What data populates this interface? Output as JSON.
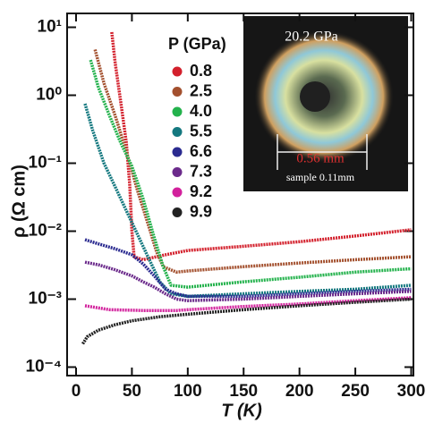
{
  "chart_data": {
    "type": "line",
    "x_label": "T (K)",
    "y_label": "ρ (Ω cm)",
    "legend_title": "P (GPa)",
    "log_y": true,
    "xlim": [
      -8,
      302
    ],
    "ylim": [
      7.5e-05,
      16
    ],
    "xticks": [
      0,
      50,
      100,
      150,
      200,
      250,
      300
    ],
    "yticks": [
      {
        "value": 10,
        "label": "10¹"
      },
      {
        "value": 1,
        "label": "10⁰"
      },
      {
        "value": 0.1,
        "label": "10⁻¹"
      },
      {
        "value": 0.01,
        "label": "10⁻²"
      },
      {
        "value": 0.001,
        "label": "10⁻³"
      },
      {
        "value": 0.0001,
        "label": "10⁻⁴"
      }
    ],
    "inset": {
      "title": "20.2 GPa",
      "scale": "0.56 mm",
      "sample": "sample 0.11mm"
    },
    "series": [
      {
        "name": "0.8",
        "color": "#d3202c",
        "x": [
          32,
          35,
          40,
          45,
          48,
          50,
          52,
          60,
          80,
          100,
          150,
          200,
          250,
          300
        ],
        "values": [
          8.5,
          3,
          0.8,
          0.2,
          0.05,
          0.01,
          0.0042,
          0.0038,
          0.0045,
          0.0052,
          0.006,
          0.007,
          0.0085,
          0.0105
        ]
      },
      {
        "name": "2.5",
        "color": "#a3502e",
        "x": [
          17,
          25,
          35,
          45,
          55,
          65,
          72,
          78,
          90,
          100,
          150,
          200,
          250,
          300
        ],
        "values": [
          4.7,
          1.5,
          0.5,
          0.15,
          0.04,
          0.012,
          0.005,
          0.003,
          0.0025,
          0.0026,
          0.003,
          0.0034,
          0.0038,
          0.0042
        ]
      },
      {
        "name": "4.0",
        "color": "#23b24c",
        "x": [
          13,
          20,
          30,
          40,
          50,
          60,
          70,
          78,
          85,
          100,
          150,
          200,
          250,
          300
        ],
        "values": [
          3.3,
          1.3,
          0.5,
          0.2,
          0.09,
          0.03,
          0.008,
          0.003,
          0.0016,
          0.0015,
          0.0018,
          0.0021,
          0.0025,
          0.0028
        ]
      },
      {
        "name": "5.5",
        "color": "#14787f",
        "x": [
          8,
          15,
          25,
          35,
          45,
          55,
          65,
          75,
          85,
          100,
          150,
          200,
          250,
          300
        ],
        "values": [
          0.75,
          0.3,
          0.1,
          0.045,
          0.02,
          0.009,
          0.004,
          0.0018,
          0.0012,
          0.0011,
          0.0012,
          0.0013,
          0.0014,
          0.0016
        ]
      },
      {
        "name": "6.6",
        "color": "#2b2b90",
        "x": [
          8,
          20,
          35,
          50,
          60,
          70,
          80,
          90,
          100,
          150,
          200,
          250,
          300
        ],
        "values": [
          0.0075,
          0.0065,
          0.0055,
          0.0045,
          0.0033,
          0.0022,
          0.0014,
          0.0012,
          0.0011,
          0.0011,
          0.0012,
          0.0013,
          0.0014
        ]
      },
      {
        "name": "7.3",
        "color": "#6b2a8b",
        "x": [
          8,
          20,
          35,
          50,
          60,
          70,
          80,
          90,
          100,
          150,
          200,
          250,
          300
        ],
        "values": [
          0.0035,
          0.0032,
          0.0027,
          0.0022,
          0.0018,
          0.0015,
          0.0012,
          0.001,
          0.00095,
          0.001,
          0.0011,
          0.0012,
          0.0013
        ]
      },
      {
        "name": "9.2",
        "color": "#d2219c",
        "x": [
          8,
          30,
          60,
          90,
          100,
          150,
          200,
          250,
          300
        ],
        "values": [
          0.0008,
          0.0007,
          0.00068,
          0.00068,
          0.0007,
          0.00078,
          0.00085,
          0.00095,
          0.00105
        ]
      },
      {
        "name": "9.9",
        "color": "#222222",
        "x": [
          6,
          10,
          20,
          35,
          50,
          75,
          100,
          150,
          200,
          250,
          300
        ],
        "values": [
          0.00022,
          0.00028,
          0.00035,
          0.00042,
          0.00048,
          0.00055,
          0.0006,
          0.0007,
          0.0008,
          0.0009,
          0.001
        ]
      }
    ]
  }
}
